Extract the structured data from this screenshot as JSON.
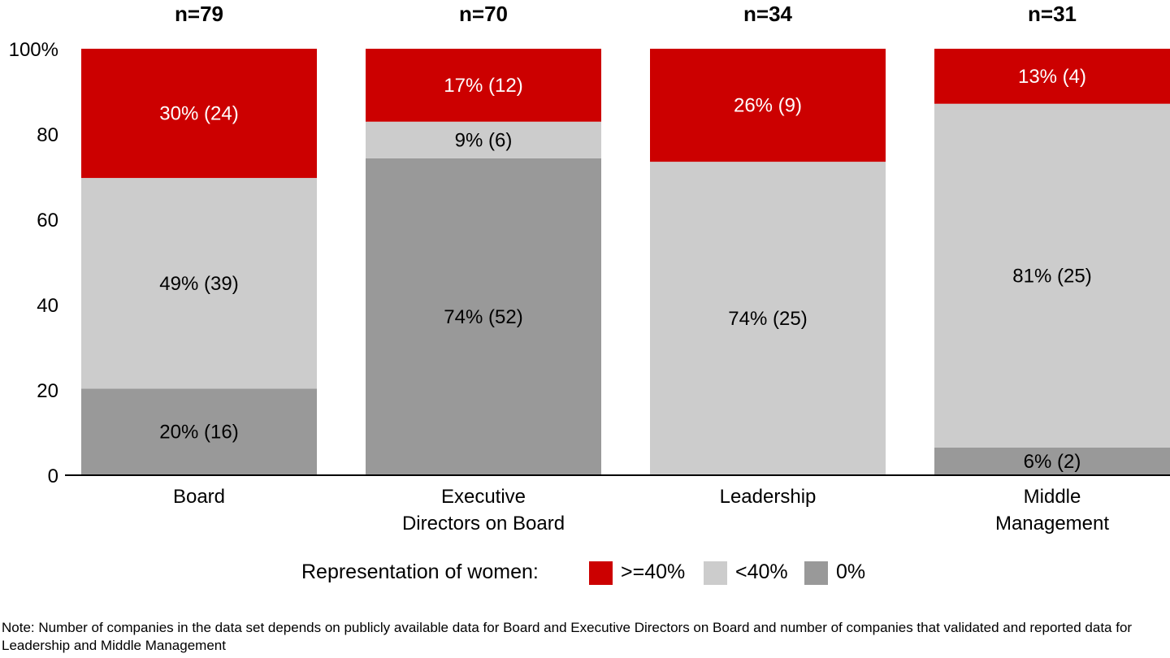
{
  "chart_data": {
    "type": "bar",
    "stacked": true,
    "categories": [
      "Board",
      "Executive Directors on Board",
      "Leadership",
      "Middle Management"
    ],
    "category_label_lines": [
      [
        "Board"
      ],
      [
        "Executive",
        "Directors on Board"
      ],
      [
        "Leadership"
      ],
      [
        "Middle",
        "Management"
      ]
    ],
    "sample_sizes": [
      "n=79",
      "n=70",
      "n=34",
      "n=31"
    ],
    "series": [
      {
        "name": "0%",
        "color": "#999999",
        "text_color": "#000000",
        "values": [
          20.3,
          74.3,
          0,
          6.5
        ],
        "labels": [
          "20% (16)",
          "74% (52)",
          "",
          "6% (2)"
        ]
      },
      {
        "name": "<40%",
        "color": "#cccccc",
        "text_color": "#000000",
        "values": [
          49.4,
          8.6,
          73.5,
          80.6
        ],
        "labels": [
          "49% (39)",
          "9% (6)",
          "74% (25)",
          "81% (25)"
        ]
      },
      {
        "name": ">=40%",
        "color": "#cc0000",
        "text_color": "#ffffff",
        "values": [
          30.3,
          17.1,
          26.5,
          12.9
        ],
        "labels": [
          "30% (24)",
          "17% (12)",
          "26% (9)",
          "13% (4)"
        ]
      }
    ],
    "ylim": [
      0,
      100
    ],
    "yticks": [
      0,
      20,
      40,
      60,
      80,
      100
    ],
    "ytick_labels": [
      "0",
      "20",
      "40",
      "60",
      "80",
      "100%"
    ],
    "legend": {
      "title": "Representation of women:",
      "entries": [
        {
          "label": ">=40%",
          "color": "#cc0000"
        },
        {
          "label": "<40%",
          "color": "#cccccc"
        },
        {
          "label": "0%",
          "color": "#999999"
        }
      ],
      "placement": "bottom"
    }
  },
  "note": "Note: Number of companies in the data set depends on publicly available data for Board and Executive Directors on Board and number of companies that validated and reported data for Leadership and Middle Management"
}
